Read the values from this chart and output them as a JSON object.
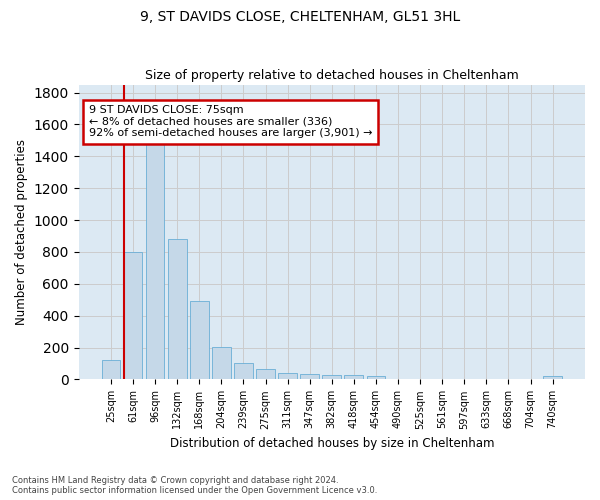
{
  "title": "9, ST DAVIDS CLOSE, CHELTENHAM, GL51 3HL",
  "subtitle": "Size of property relative to detached houses in Cheltenham",
  "xlabel": "Distribution of detached houses by size in Cheltenham",
  "ylabel": "Number of detached properties",
  "footnote1": "Contains HM Land Registry data © Crown copyright and database right 2024.",
  "footnote2": "Contains public sector information licensed under the Open Government Licence v3.0.",
  "categories": [
    "25sqm",
    "61sqm",
    "96sqm",
    "132sqm",
    "168sqm",
    "204sqm",
    "239sqm",
    "275sqm",
    "311sqm",
    "347sqm",
    "382sqm",
    "418sqm",
    "454sqm",
    "490sqm",
    "525sqm",
    "561sqm",
    "597sqm",
    "633sqm",
    "668sqm",
    "704sqm",
    "740sqm"
  ],
  "values": [
    125,
    800,
    1480,
    880,
    490,
    205,
    105,
    65,
    40,
    35,
    30,
    25,
    20,
    0,
    0,
    0,
    0,
    0,
    0,
    0,
    20
  ],
  "bar_color": "#c5d8e8",
  "bar_edge_color": "#6aaed6",
  "annotation_line1": "9 ST DAVIDS CLOSE: 75sqm",
  "annotation_line2": "← 8% of detached houses are smaller (336)",
  "annotation_line3": "92% of semi-detached houses are larger (3,901) →",
  "annotation_box_color": "#ffffff",
  "annotation_box_edge_color": "#cc0000",
  "red_line_bin": 1,
  "ylim": [
    0,
    1850
  ],
  "yticks": [
    0,
    200,
    400,
    600,
    800,
    1000,
    1200,
    1400,
    1600,
    1800
  ],
  "grid_color": "#cccccc",
  "bg_color": "#dce9f3"
}
